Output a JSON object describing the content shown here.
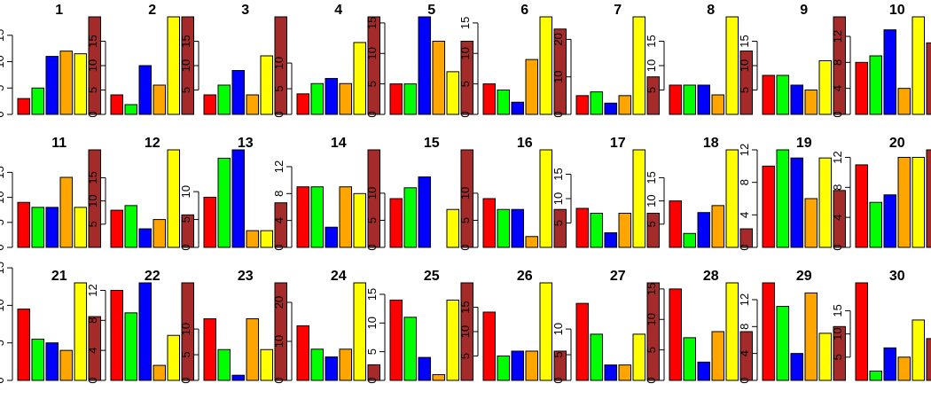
{
  "chart_data": [
    {
      "title": "1",
      "type": "bar",
      "values": [
        3,
        5,
        11,
        12,
        11.5,
        18.5
      ],
      "yticks": [
        0,
        5,
        10,
        15
      ]
    },
    {
      "title": "2",
      "type": "bar",
      "values": [
        4,
        2,
        10,
        6,
        20,
        20
      ],
      "yticks": [
        0,
        5,
        10,
        15
      ]
    },
    {
      "title": "3",
      "type": "bar",
      "values": [
        4,
        6,
        9,
        4,
        12,
        20
      ],
      "yticks": [
        5,
        10,
        15
      ]
    },
    {
      "title": "4",
      "type": "bar",
      "values": [
        4,
        6,
        7,
        6,
        14,
        19
      ],
      "yticks": [
        0,
        5,
        10
      ]
    },
    {
      "title": "5",
      "type": "bar",
      "values": [
        5,
        5,
        16,
        12,
        7,
        12
      ],
      "yticks": [
        0,
        5,
        10,
        15
      ]
    },
    {
      "title": "6",
      "type": "bar",
      "values": [
        5,
        4,
        2,
        9,
        16,
        14
      ],
      "yticks": [
        0,
        5,
        10,
        15
      ]
    },
    {
      "title": "7",
      "type": "bar",
      "values": [
        5,
        6,
        3,
        5,
        26,
        10
      ],
      "yticks": [
        0,
        10,
        20
      ]
    },
    {
      "title": "8",
      "type": "bar",
      "values": [
        6,
        6,
        6,
        4,
        20,
        13
      ],
      "yticks": [
        5,
        10,
        15
      ]
    },
    {
      "title": "9",
      "type": "bar",
      "values": [
        8,
        8,
        6,
        5,
        11,
        20
      ],
      "yticks": [
        5,
        10,
        15
      ]
    },
    {
      "title": "10",
      "type": "bar",
      "values": [
        8,
        9,
        13,
        4,
        15,
        11
      ],
      "yticks": [
        0,
        4,
        8,
        12
      ]
    },
    {
      "title": "11",
      "type": "bar",
      "values": [
        9,
        8,
        8,
        14,
        8,
        19.5
      ],
      "yticks": [
        0,
        5,
        10,
        15
      ]
    },
    {
      "title": "12",
      "type": "bar",
      "values": [
        8,
        9,
        4,
        6,
        21,
        7
      ],
      "yticks": [
        5,
        10,
        15
      ]
    },
    {
      "title": "13",
      "type": "bar",
      "values": [
        9,
        16,
        17.5,
        3,
        3,
        8
      ],
      "yticks": [
        0,
        5,
        10
      ]
    },
    {
      "title": "14",
      "type": "bar",
      "values": [
        9,
        9,
        3,
        9,
        8,
        14.5
      ],
      "yticks": [
        0,
        4,
        8,
        12
      ]
    },
    {
      "title": "15",
      "type": "bar",
      "values": [
        9,
        11,
        13,
        0,
        7,
        18
      ],
      "yticks": [
        0,
        5,
        10
      ]
    },
    {
      "title": "16",
      "type": "bar",
      "values": [
        9,
        7,
        7,
        2,
        18,
        7
      ],
      "yticks": [
        0,
        5,
        10
      ]
    },
    {
      "title": "17",
      "type": "bar",
      "values": [
        8,
        7,
        3,
        7,
        20,
        7
      ],
      "yticks": [
        5,
        10,
        15
      ]
    },
    {
      "title": "18",
      "type": "bar",
      "values": [
        10,
        3,
        7.5,
        9,
        21,
        4
      ],
      "yticks": [
        5,
        10,
        15
      ]
    },
    {
      "title": "19",
      "type": "bar",
      "values": [
        10,
        12,
        11,
        6,
        11,
        7
      ],
      "yticks": [
        0,
        4,
        8,
        12
      ]
    },
    {
      "title": "20",
      "type": "bar",
      "values": [
        11,
        6,
        7,
        12,
        12,
        13
      ],
      "yticks": [
        0,
        4,
        8,
        12
      ]
    },
    {
      "title": "21",
      "type": "bar",
      "values": [
        9.5,
        5.5,
        5,
        4,
        13,
        8.5
      ],
      "yticks": [
        0,
        5,
        10,
        15
      ]
    },
    {
      "title": "22",
      "type": "bar",
      "values": [
        12,
        9,
        13,
        2,
        6,
        13
      ],
      "yticks": [
        0,
        4,
        8,
        12
      ]
    },
    {
      "title": "23",
      "type": "bar",
      "values": [
        12,
        6,
        1,
        12,
        6,
        19
      ],
      "yticks": [
        0,
        5,
        10
      ]
    },
    {
      "title": "24",
      "type": "bar",
      "values": [
        14,
        8,
        6,
        8,
        25,
        4
      ],
      "yticks": [
        0,
        10,
        20
      ]
    },
    {
      "title": "25",
      "type": "bar",
      "values": [
        14,
        11,
        4,
        1,
        14,
        17
      ],
      "yticks": [
        0,
        5,
        10,
        15
      ]
    },
    {
      "title": "26",
      "type": "bar",
      "values": [
        14,
        5,
        6,
        6,
        20,
        6
      ],
      "yticks": [
        5,
        10,
        15
      ]
    },
    {
      "title": "27",
      "type": "bar",
      "values": [
        15,
        9,
        3,
        3,
        9,
        19
      ],
      "yticks": [
        0,
        5,
        10
      ]
    },
    {
      "title": "28",
      "type": "bar",
      "values": [
        15,
        7,
        3,
        8,
        16,
        8
      ],
      "yticks": [
        0,
        5,
        10,
        15
      ]
    },
    {
      "title": "29",
      "type": "bar",
      "values": [
        14.5,
        11,
        4,
        13,
        7,
        8
      ],
      "yticks": [
        0,
        4,
        8,
        12
      ]
    },
    {
      "title": "30",
      "type": "bar",
      "values": [
        21,
        2,
        7,
        5,
        13,
        9
      ],
      "yticks": [
        5,
        10,
        15
      ]
    }
  ],
  "colors": [
    "#ff0000",
    "#00ff00",
    "#0000ff",
    "#ffa500",
    "#ffff00",
    "#a52a2a"
  ]
}
